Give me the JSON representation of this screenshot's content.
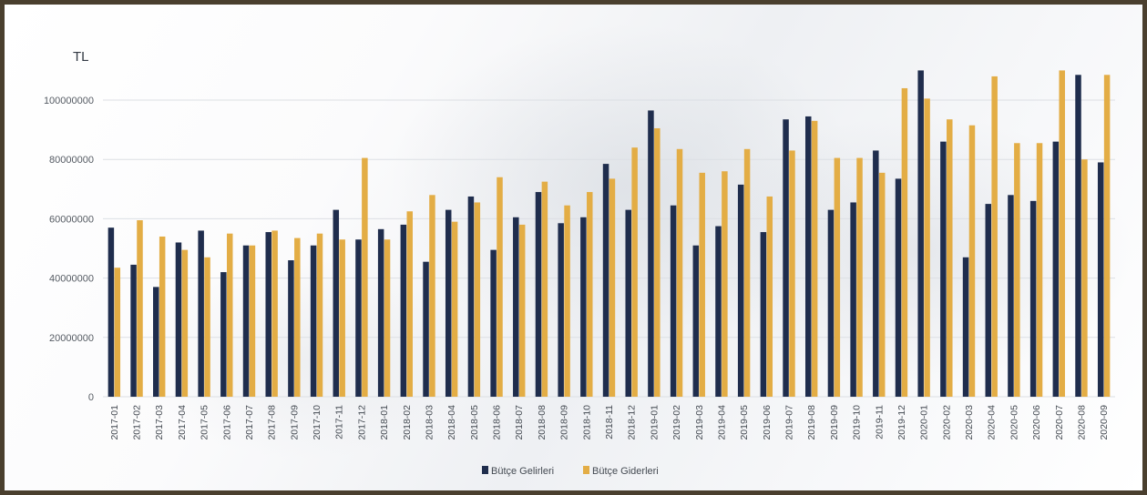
{
  "chart_data": {
    "type": "bar",
    "ylabel": "TL",
    "ylim": [
      0,
      110000000
    ],
    "yticks": [
      "0",
      "20000000",
      "40000000",
      "60000000",
      "80000000",
      "100000000"
    ],
    "ytick_values": [
      0,
      20000000,
      40000000,
      60000000,
      80000000,
      100000000
    ],
    "grid": true,
    "legend_position": "bottom-center",
    "categories": [
      "2017-01",
      "2017-02",
      "2017-03",
      "2017-04",
      "2017-05",
      "2017-06",
      "2017-07",
      "2017-08",
      "2017-09",
      "2017-10",
      "2017-11",
      "2017-12",
      "2018-01",
      "2018-02",
      "2018-03",
      "2018-04",
      "2018-05",
      "2018-06",
      "2018-07",
      "2018-08",
      "2018-09",
      "2018-10",
      "2018-11",
      "2018-12",
      "2019-01",
      "2019-02",
      "2019-03",
      "2019-04",
      "2019-05",
      "2019-06",
      "2019-07",
      "2019-08",
      "2019-09",
      "2019-10",
      "2019-11",
      "2019-12",
      "2020-01",
      "2020-02",
      "2020-03",
      "2020-04",
      "2020-05",
      "2020-06",
      "2020-07",
      "2020-08",
      "2020-09"
    ],
    "series": [
      {
        "name": "Bütçe Gelirleri",
        "color": "#1f2d4d",
        "values": [
          57000000,
          44500000,
          37000000,
          52000000,
          56000000,
          42000000,
          51000000,
          55500000,
          46000000,
          51000000,
          63000000,
          53000000,
          56500000,
          58000000,
          45500000,
          63000000,
          67500000,
          49500000,
          60500000,
          69000000,
          58500000,
          60500000,
          78500000,
          63000000,
          96500000,
          64500000,
          51000000,
          57500000,
          71500000,
          55500000,
          93500000,
          94500000,
          63000000,
          65500000,
          83000000,
          73500000,
          110000000,
          86000000,
          47000000,
          65000000,
          68000000,
          66000000,
          86000000,
          108500000,
          79000000
        ]
      },
      {
        "name": "Bütçe Giderleri",
        "color": "#e3ad45",
        "values": [
          43500000,
          59500000,
          54000000,
          49500000,
          47000000,
          55000000,
          51000000,
          56000000,
          53500000,
          55000000,
          53000000,
          80500000,
          53000000,
          62500000,
          68000000,
          59000000,
          65500000,
          74000000,
          58000000,
          72500000,
          64500000,
          69000000,
          73500000,
          84000000,
          90500000,
          83500000,
          75500000,
          76000000,
          83500000,
          67500000,
          83000000,
          93000000,
          80500000,
          80500000,
          75500000,
          104000000,
          100500000,
          93500000,
          91500000,
          108000000,
          85500000,
          85500000,
          110000000,
          80000000,
          108500000
        ]
      }
    ]
  }
}
